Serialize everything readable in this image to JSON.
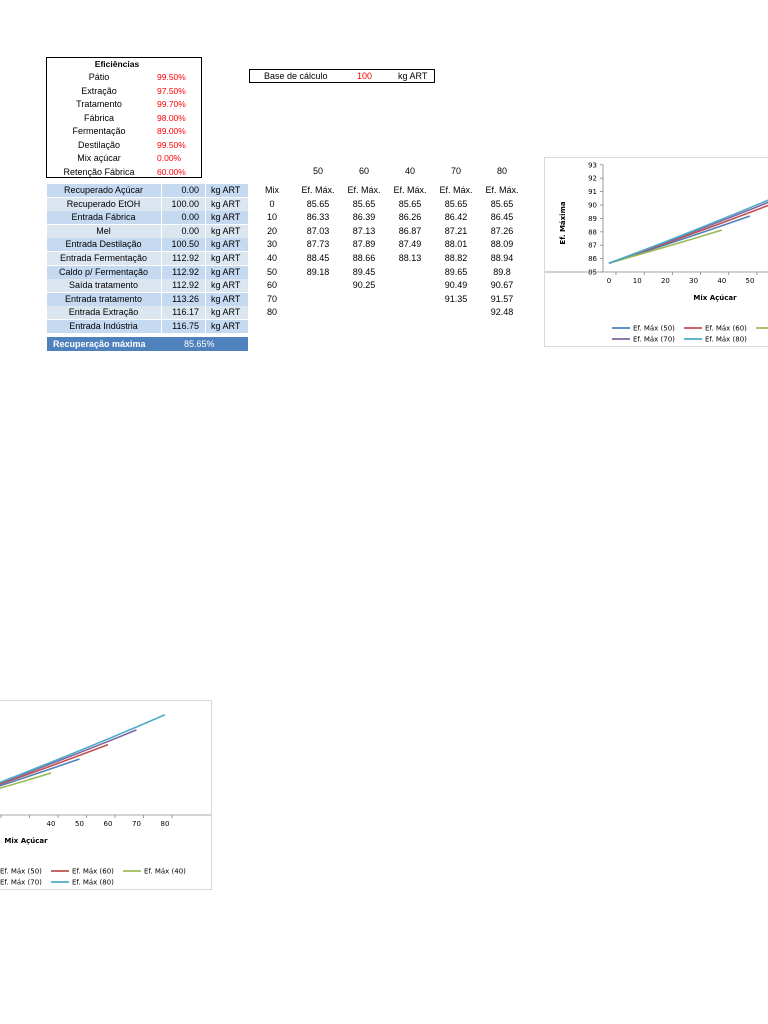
{
  "eficiencias": {
    "title": "Eficiências",
    "rows": [
      {
        "label": "Pátio",
        "value": "99.50%"
      },
      {
        "label": "Extração",
        "value": "97.50%"
      },
      {
        "label": "Tratamento",
        "value": "99.70%"
      },
      {
        "label": "Fábrica",
        "value": "98.00%"
      },
      {
        "label": "Fermentação",
        "value": "89.00%"
      },
      {
        "label": "Destilação",
        "value": "99.50%"
      },
      {
        "label": "Mix açúcar",
        "value": "0.00%"
      },
      {
        "label": "Retenção Fábrica",
        "value": "60.00%"
      }
    ]
  },
  "base": {
    "label": "Base de cálculo",
    "value": "100",
    "unit": "kg ART"
  },
  "balance": {
    "rows": [
      {
        "label": "Recuperado Açúcar",
        "value": "0.00",
        "unit": "kg ART"
      },
      {
        "label": "Recuperado EtOH",
        "value": "100.00",
        "unit": "kg ART"
      },
      {
        "label": "Entrada Fábrica",
        "value": "0.00",
        "unit": "kg ART"
      },
      {
        "label": "Mel",
        "value": "0.00",
        "unit": "kg ART"
      },
      {
        "label": "Entrada Destilação",
        "value": "100.50",
        "unit": "kg ART"
      },
      {
        "label": "Entrada Fermentação",
        "value": "112.92",
        "unit": "kg ART"
      },
      {
        "label": "Caldo p/ Fermentação",
        "value": "112.92",
        "unit": "kg ART"
      },
      {
        "label": "Saída tratamento",
        "value": "112.92",
        "unit": "kg ART"
      },
      {
        "label": "Entrada tratamento",
        "value": "113.26",
        "unit": "kg ART"
      },
      {
        "label": "Entrada Extração",
        "value": "116.17",
        "unit": "kg ART"
      },
      {
        "label": "Entrada Indústria",
        "value": "116.75",
        "unit": "kg ART"
      }
    ],
    "recuperacao": {
      "label": "Recuperação máxima",
      "value": "85.65%"
    }
  },
  "mix_table": {
    "retention_headers": [
      "50",
      "60",
      "40",
      "70",
      "80"
    ],
    "column_headers": [
      "Mix",
      "Ef. Máx.",
      "Ef. Máx.",
      "Ef. Máx.",
      "Ef. Máx.",
      "Ef. Máx."
    ],
    "rows": [
      [
        "0",
        "85.65",
        "85.65",
        "85.65",
        "85.65",
        "85.65"
      ],
      [
        "10",
        "86.33",
        "86.39",
        "86.26",
        "86.42",
        "86.45"
      ],
      [
        "20",
        "87.03",
        "87.13",
        "86.87",
        "87.21",
        "87.26"
      ],
      [
        "30",
        "87.73",
        "87.89",
        "87.49",
        "88.01",
        "88.09"
      ],
      [
        "40",
        "88.45",
        "88.66",
        "88.13",
        "88.82",
        "88.94"
      ],
      [
        "50",
        "89.18",
        "89.45",
        "",
        "89.65",
        "89.8"
      ],
      [
        "60",
        "",
        "90.25",
        "",
        "90.49",
        "90.67"
      ],
      [
        "70",
        "",
        "",
        "",
        "91.35",
        "91.57"
      ],
      [
        "80",
        "",
        "",
        "",
        "",
        "92.48"
      ]
    ]
  },
  "chart_data": {
    "type": "line",
    "title": "",
    "xlabel": "Mix Açúcar",
    "ylabel": "Ef. Máxima",
    "ylim": [
      85,
      93
    ],
    "xlim": [
      0,
      90
    ],
    "x_ticks": [
      "0",
      "10",
      "20",
      "30",
      "40",
      "50",
      "60",
      "70",
      "80"
    ],
    "y_ticks": [
      "85",
      "86",
      "87",
      "88",
      "89",
      "90",
      "91",
      "92",
      "93"
    ],
    "legend_position": "bottom",
    "series": [
      {
        "name": "Ef. Máx (50)",
        "color": "#4f81bd",
        "x": [
          0,
          10,
          20,
          30,
          40,
          50
        ],
        "values": [
          85.65,
          86.33,
          87.03,
          87.73,
          88.45,
          89.18
        ]
      },
      {
        "name": "Ef. Máx (60)",
        "color": "#c0504d",
        "x": [
          0,
          10,
          20,
          30,
          40,
          50,
          60
        ],
        "values": [
          85.65,
          86.39,
          87.13,
          87.89,
          88.66,
          89.45,
          90.25
        ]
      },
      {
        "name": "Ef. Máx (40)",
        "color": "#9bbb59",
        "x": [
          0,
          10,
          20,
          30,
          40
        ],
        "values": [
          85.65,
          86.26,
          86.87,
          87.49,
          88.13
        ]
      },
      {
        "name": "Ef. Máx (70)",
        "color": "#8064a2",
        "x": [
          0,
          10,
          20,
          30,
          40,
          50,
          60,
          70
        ],
        "values": [
          85.65,
          86.42,
          87.21,
          88.01,
          88.82,
          89.65,
          90.49,
          91.35
        ]
      },
      {
        "name": "Ef. Máx (80)",
        "color": "#4bacc6",
        "x": [
          0,
          10,
          20,
          30,
          40,
          50,
          60,
          70,
          80
        ],
        "values": [
          85.65,
          86.45,
          87.26,
          88.09,
          88.94,
          89.8,
          90.67,
          91.57,
          92.48
        ]
      }
    ]
  }
}
